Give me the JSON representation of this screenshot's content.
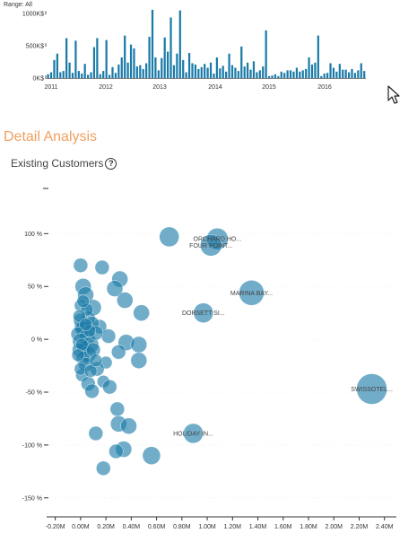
{
  "header": {
    "range_label": "Range: All"
  },
  "section": {
    "title": "Detail Analysis",
    "subtitle": "Existing Customers",
    "help_icon": "help-circle-icon"
  },
  "colors": {
    "bar": "#1a7aa8",
    "bubble": "#1a7aa8",
    "accent": "#f0a060"
  },
  "chart_data": [
    {
      "type": "bar",
      "y_ticks": [
        "0K$",
        "500K$",
        "1000K$"
      ],
      "y_tick_values": [
        0,
        500000,
        1000000
      ],
      "x_ticks": [
        "2011",
        "2012",
        "2013",
        "2014",
        "2015",
        "2016"
      ],
      "ylim": [
        0,
        1100000
      ],
      "values": [
        60000,
        90000,
        280000,
        380000,
        90000,
        110000,
        620000,
        240000,
        80000,
        580000,
        110000,
        70000,
        220000,
        50000,
        90000,
        480000,
        620000,
        60000,
        110000,
        590000,
        50000,
        170000,
        80000,
        210000,
        320000,
        660000,
        240000,
        520000,
        460000,
        180000,
        200000,
        140000,
        230000,
        640000,
        1060000,
        320000,
        120000,
        310000,
        630000,
        410000,
        940000,
        200000,
        380000,
        1050000,
        280000,
        90000,
        390000,
        230000,
        210000,
        140000,
        170000,
        220000,
        160000,
        240000,
        70000,
        320000,
        150000,
        190000,
        100000,
        380000,
        200000,
        160000,
        110000,
        490000,
        180000,
        240000,
        130000,
        260000,
        90000,
        120000,
        180000,
        740000,
        30000,
        40000,
        60000,
        30000,
        100000,
        80000,
        120000,
        120000,
        100000,
        160000,
        100000,
        120000,
        140000,
        320000,
        210000,
        240000,
        660000,
        30000,
        70000,
        80000,
        230000,
        160000,
        100000,
        220000,
        130000,
        130000,
        90000,
        140000,
        80000,
        120000,
        230000,
        110000
      ]
    },
    {
      "type": "scatter",
      "x_ticks": [
        "-0.20M",
        "0.00M",
        "0.20M",
        "0.40M",
        "0.60M",
        "0.80M",
        "1.00M",
        "1.20M",
        "1.40M",
        "1.60M",
        "1.80M",
        "2.00M",
        "2.20M",
        "2.40M"
      ],
      "x_tick_values": [
        -0.2,
        0,
        0.2,
        0.4,
        0.6,
        0.8,
        1.0,
        1.2,
        1.4,
        1.6,
        1.8,
        2.0,
        2.2,
        2.4
      ],
      "y_ticks": [
        "100 %",
        "50 %",
        "0 %",
        "-50 %",
        "-100 %",
        "-150 %"
      ],
      "y_tick_values": [
        100,
        50,
        0,
        -50,
        -100,
        -150
      ],
      "xlim": [
        -0.24,
        2.48
      ],
      "ylim": [
        -168,
        147
      ],
      "labels": {
        "orchard": "ORCHARD HO...",
        "four_points": "FOUR POINT...",
        "marina_bay": "MARINA BAY...",
        "dorsett": "DORSETT SI...",
        "swissotel": "SWISSOTEL...",
        "holiday_inn": "HOLIDAY IN..."
      },
      "points": [
        {
          "x": 0.7,
          "y": 97,
          "r": 11
        },
        {
          "x": 1.08,
          "y": 95,
          "r": 12,
          "label": "orchard"
        },
        {
          "x": 1.03,
          "y": 89,
          "r": 12,
          "label": "four_points"
        },
        {
          "x": 1.35,
          "y": 44,
          "r": 14,
          "label": "marina_bay"
        },
        {
          "x": 0.97,
          "y": 25,
          "r": 11,
          "label": "dorsett"
        },
        {
          "x": 2.3,
          "y": -47,
          "r": 17,
          "label": "swissotel"
        },
        {
          "x": 0.89,
          "y": -89,
          "r": 11,
          "label": "holiday_inn"
        },
        {
          "x": 0.0,
          "y": 70,
          "r": 8
        },
        {
          "x": 0.17,
          "y": 68,
          "r": 8
        },
        {
          "x": 0.31,
          "y": 57,
          "r": 9
        },
        {
          "x": 0.27,
          "y": 48,
          "r": 9
        },
        {
          "x": 0.02,
          "y": 50,
          "r": 9
        },
        {
          "x": 0.04,
          "y": 42,
          "r": 9
        },
        {
          "x": 0.35,
          "y": 37,
          "r": 9
        },
        {
          "x": 0.0,
          "y": 32,
          "r": 7
        },
        {
          "x": 0.1,
          "y": 30,
          "r": 9
        },
        {
          "x": 0.48,
          "y": 25,
          "r": 9
        },
        {
          "x": 0.06,
          "y": 20,
          "r": 8
        },
        {
          "x": 0.15,
          "y": 12,
          "r": 8
        },
        {
          "x": 0.0,
          "y": 12,
          "r": 7
        },
        {
          "x": 0.22,
          "y": 3,
          "r": 8
        },
        {
          "x": 0.36,
          "y": -3,
          "r": 9
        },
        {
          "x": 0.46,
          "y": -5,
          "r": 9
        },
        {
          "x": 0.3,
          "y": -12,
          "r": 8
        },
        {
          "x": 0.46,
          "y": -20,
          "r": 9
        },
        {
          "x": 0.2,
          "y": -22,
          "r": 7
        },
        {
          "x": 0.13,
          "y": -28,
          "r": 8
        },
        {
          "x": 0.01,
          "y": -34,
          "r": 7
        },
        {
          "x": 0.06,
          "y": -42,
          "r": 8
        },
        {
          "x": 0.18,
          "y": -40,
          "r": 7
        },
        {
          "x": 0.23,
          "y": -45,
          "r": 8
        },
        {
          "x": 0.09,
          "y": -49,
          "r": 8
        },
        {
          "x": 0.29,
          "y": -66,
          "r": 8
        },
        {
          "x": 0.3,
          "y": -80,
          "r": 9
        },
        {
          "x": 0.38,
          "y": -82,
          "r": 9
        },
        {
          "x": 0.12,
          "y": -89,
          "r": 8
        },
        {
          "x": 0.34,
          "y": -104,
          "r": 9
        },
        {
          "x": 0.28,
          "y": -106,
          "r": 8
        },
        {
          "x": 0.56,
          "y": -110,
          "r": 10
        },
        {
          "x": 0.18,
          "y": -122,
          "r": 8
        },
        {
          "x": 0.0,
          "y": 18,
          "r": 8
        },
        {
          "x": 0.02,
          "y": 10,
          "r": 9
        },
        {
          "x": -0.02,
          "y": 5,
          "r": 8
        },
        {
          "x": 0.05,
          "y": 2,
          "r": 9
        },
        {
          "x": 0.0,
          "y": -2,
          "r": 9
        },
        {
          "x": 0.08,
          "y": -5,
          "r": 9
        },
        {
          "x": 0.03,
          "y": -8,
          "r": 8
        },
        {
          "x": -0.01,
          "y": -10,
          "r": 8
        },
        {
          "x": 0.06,
          "y": -14,
          "r": 9
        },
        {
          "x": 0.02,
          "y": -18,
          "r": 8
        },
        {
          "x": 0.1,
          "y": -10,
          "r": 8
        },
        {
          "x": 0.04,
          "y": -24,
          "r": 8
        },
        {
          "x": 0.0,
          "y": -28,
          "r": 7
        },
        {
          "x": 0.08,
          "y": -30,
          "r": 7
        },
        {
          "x": 0.12,
          "y": -20,
          "r": 7
        },
        {
          "x": 0.05,
          "y": 28,
          "r": 7
        },
        {
          "x": 0.02,
          "y": 36,
          "r": 7
        },
        {
          "x": -0.01,
          "y": 22,
          "r": 7
        },
        {
          "x": 0.09,
          "y": 15,
          "r": 8
        },
        {
          "x": 0.12,
          "y": 6,
          "r": 8
        },
        {
          "x": 0.01,
          "y": -5,
          "r": 7
        },
        {
          "x": 0.07,
          "y": 8,
          "r": 7
        },
        {
          "x": -0.02,
          "y": -15,
          "r": 7
        },
        {
          "x": 0.04,
          "y": 14,
          "r": 7
        }
      ]
    }
  ]
}
